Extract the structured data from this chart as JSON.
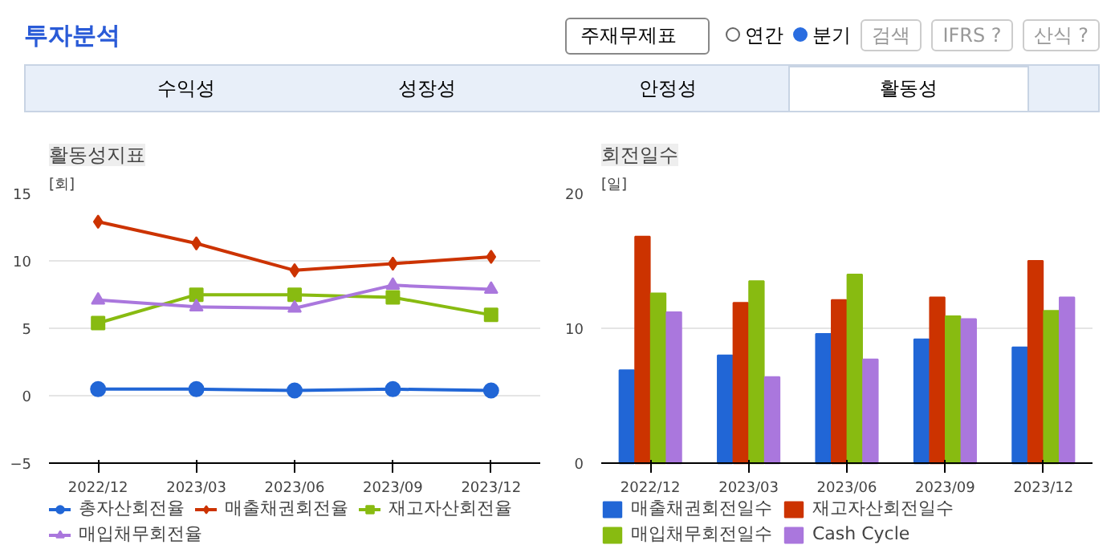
{
  "chart_data": [
    {
      "type": "other",
      "title": "투자분석",
      "annotations": [
        "주재무제표",
        "연간",
        "분기",
        "검색",
        "IFRS ?",
        "산식 ?",
        "수익성",
        "성장성",
        "안정성",
        "활동성"
      ]
    },
    {
      "type": "line",
      "title": "활동성지표",
      "ylabel": "[회]",
      "categories": [
        "2022/12",
        "2023/03",
        "2023/06",
        "2023/09",
        "2023/12"
      ],
      "ylim": [
        -5,
        15
      ],
      "yticks": [
        -5,
        0,
        5,
        10,
        15
      ],
      "grid": "y",
      "legend": "bottom",
      "series": [
        {
          "name": "총자산회전율",
          "color": "#2166d6",
          "marker": "circle",
          "values": [
            0.5,
            0.5,
            0.4,
            0.5,
            0.4
          ]
        },
        {
          "name": "매출채권회전율",
          "color": "#cc3300",
          "marker": "diamond",
          "values": [
            12.9,
            11.3,
            9.3,
            9.8,
            10.3
          ]
        },
        {
          "name": "재고자산회전율",
          "color": "#88bb11",
          "marker": "square",
          "values": [
            5.4,
            7.5,
            7.5,
            7.3,
            6.0
          ]
        },
        {
          "name": "매입채무회전율",
          "color": "#aa77dd",
          "marker": "triangle",
          "values": [
            7.1,
            6.6,
            6.5,
            8.2,
            7.9
          ]
        }
      ]
    },
    {
      "type": "bar",
      "title": "회전일수",
      "ylabel": "[일]",
      "categories": [
        "2022/12",
        "2023/03",
        "2023/06",
        "2023/09",
        "2023/12"
      ],
      "ylim": [
        0,
        20
      ],
      "yticks": [
        0,
        10,
        20
      ],
      "grid": "y",
      "legend": "bottom",
      "series": [
        {
          "name": "매출채권회전일수",
          "color": "#2166d6",
          "values": [
            6.9,
            8.0,
            9.6,
            9.2,
            8.6
          ]
        },
        {
          "name": "재고자산회전일수",
          "color": "#cc3300",
          "values": [
            16.8,
            11.9,
            12.1,
            12.3,
            15.0
          ]
        },
        {
          "name": "매입채무회전일수",
          "color": "#88bb11",
          "values": [
            12.6,
            13.5,
            14.0,
            10.9,
            11.3
          ]
        },
        {
          "name": "Cash Cycle",
          "color": "#aa77dd",
          "values": [
            11.2,
            6.4,
            7.7,
            10.7,
            12.3
          ]
        }
      ]
    }
  ]
}
